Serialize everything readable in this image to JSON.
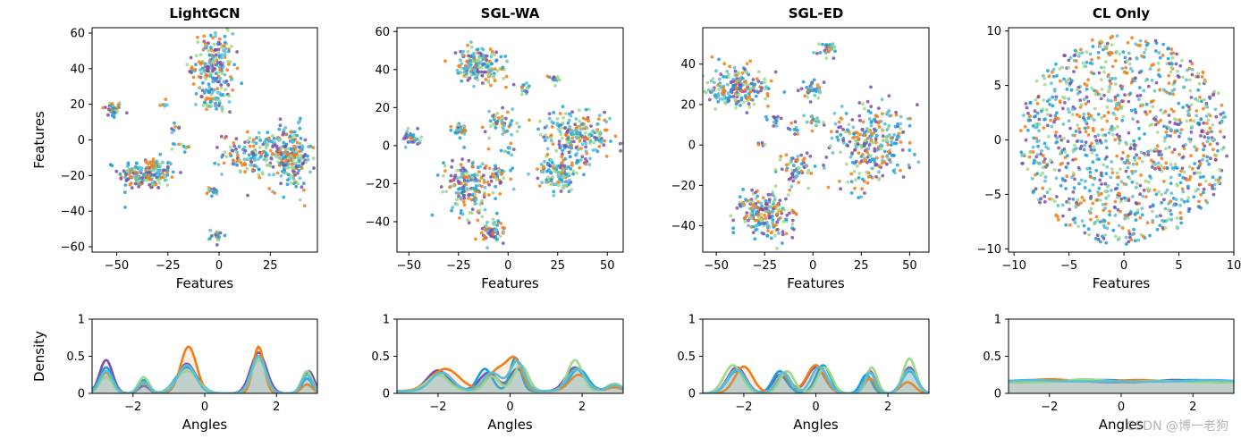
{
  "watermark": "CSDN @博一老狗",
  "colors": [
    "#7b4fa8",
    "#1a9fd9",
    "#f57c14",
    "#9fd889",
    "#5bbcd6"
  ],
  "chart_data": [
    {
      "type": "scatter",
      "title": "LightGCN",
      "xlabel": "Features",
      "ylabel": "Features",
      "xlim": [
        -62,
        48
      ],
      "ylim": [
        -63,
        63
      ],
      "xticks": [
        -50,
        -25,
        0,
        25
      ],
      "yticks": [
        -60,
        -40,
        -20,
        0,
        20,
        40,
        60
      ],
      "clusters": [
        {
          "x": -52,
          "y": 17,
          "sx": 2.5,
          "sy": 2.5,
          "n": 35
        },
        {
          "x": -35,
          "y": -19,
          "sx": 7,
          "sy": 4.5,
          "n": 190
        },
        {
          "x": -27,
          "y": 20,
          "sx": 1.5,
          "sy": 1.2,
          "n": 7
        },
        {
          "x": -22,
          "y": 7,
          "sx": 1.5,
          "sy": 1.5,
          "n": 8
        },
        {
          "x": -18,
          "y": -4,
          "sx": 2,
          "sy": 1.5,
          "n": 10
        },
        {
          "x": -3,
          "y": 42,
          "sx": 5,
          "sy": 9,
          "n": 190
        },
        {
          "x": -2,
          "y": 22,
          "sx": 4,
          "sy": 3,
          "n": 50
        },
        {
          "x": -3,
          "y": -29,
          "sx": 2,
          "sy": 1.5,
          "n": 15
        },
        {
          "x": -1,
          "y": -54,
          "sx": 2,
          "sy": 1.8,
          "n": 20
        },
        {
          "x": 18,
          "y": -8,
          "sx": 8,
          "sy": 6,
          "n": 160
        },
        {
          "x": 35,
          "y": -10,
          "sx": 5,
          "sy": 9,
          "n": 200
        }
      ]
    },
    {
      "type": "scatter",
      "title": "SGL-WA",
      "xlabel": "Features",
      "ylabel": "",
      "xlim": [
        -56,
        58
      ],
      "ylim": [
        -56,
        62
      ],
      "xticks": [
        -50,
        -25,
        0,
        25,
        50
      ],
      "yticks": [
        -40,
        -20,
        0,
        20,
        40,
        60
      ],
      "clusters": [
        {
          "x": -48,
          "y": 4,
          "sx": 2.5,
          "sy": 2.5,
          "n": 30
        },
        {
          "x": -15,
          "y": 42,
          "sx": 6,
          "sy": 5,
          "n": 170
        },
        {
          "x": -25,
          "y": 9,
          "sx": 2.5,
          "sy": 2,
          "n": 30
        },
        {
          "x": -5,
          "y": 12,
          "sx": 4,
          "sy": 3,
          "n": 50
        },
        {
          "x": 8,
          "y": 30,
          "sx": 2,
          "sy": 1.5,
          "n": 15
        },
        {
          "x": 23,
          "y": 35,
          "sx": 1.5,
          "sy": 1.5,
          "n": 12
        },
        {
          "x": -20,
          "y": -22,
          "sx": 6,
          "sy": 8,
          "n": 170
        },
        {
          "x": -8,
          "y": -45,
          "sx": 4,
          "sy": 3,
          "n": 60
        },
        {
          "x": -6,
          "y": -15,
          "sx": 3,
          "sy": 3,
          "n": 35
        },
        {
          "x": 0,
          "y": -2,
          "sx": 1.5,
          "sy": 1.5,
          "n": 10
        },
        {
          "x": 25,
          "y": -15,
          "sx": 5,
          "sy": 4,
          "n": 120
        },
        {
          "x": 35,
          "y": 5,
          "sx": 9,
          "sy": 7,
          "n": 220
        }
      ]
    },
    {
      "type": "scatter",
      "title": "SGL-ED",
      "xlabel": "Features",
      "ylabel": "",
      "xlim": [
        -57,
        60
      ],
      "ylim": [
        -53,
        58
      ],
      "xticks": [
        -50,
        -25,
        0,
        25,
        50
      ],
      "yticks": [
        -40,
        -20,
        0,
        20,
        40
      ],
      "clusters": [
        {
          "x": -40,
          "y": 28,
          "sx": 8,
          "sy": 5,
          "n": 200
        },
        {
          "x": -20,
          "y": 12,
          "sx": 1.5,
          "sy": 1.5,
          "n": 12
        },
        {
          "x": -27,
          "y": 0,
          "sx": 1.2,
          "sy": 1.2,
          "n": 5
        },
        {
          "x": -10,
          "y": 8,
          "sx": 1.5,
          "sy": 1.5,
          "n": 10
        },
        {
          "x": 0,
          "y": 27,
          "sx": 3,
          "sy": 2.5,
          "n": 30
        },
        {
          "x": 2,
          "y": 12,
          "sx": 2.5,
          "sy": 2,
          "n": 20
        },
        {
          "x": 8,
          "y": 47,
          "sx": 3,
          "sy": 3,
          "n": 30
        },
        {
          "x": -25,
          "y": -34,
          "sx": 7,
          "sy": 6,
          "n": 200
        },
        {
          "x": -8,
          "y": -12,
          "sx": 4,
          "sy": 4,
          "n": 60
        },
        {
          "x": 30,
          "y": 0,
          "sx": 10,
          "sy": 10,
          "n": 280
        }
      ]
    },
    {
      "type": "scatter",
      "title": "CL Only",
      "xlabel": "Features",
      "ylabel": "",
      "xlim": [
        -10.5,
        10
      ],
      "ylim": [
        -10.3,
        10.3
      ],
      "xticks": [
        -10,
        -5,
        0,
        5,
        10
      ],
      "yticks": [
        -10,
        -5,
        0,
        5,
        10
      ],
      "disk": {
        "cx": 0,
        "cy": 0,
        "r": 9.6,
        "n": 1100
      }
    },
    {
      "type": "area",
      "title": "",
      "xlabel": "Angles",
      "ylabel": "Density",
      "xlim": [
        -3.14,
        3.14
      ],
      "ylim": [
        0,
        1.0
      ],
      "xticks": [
        -2,
        0,
        2
      ],
      "yticks": [
        0.0,
        0.5,
        1.0
      ],
      "series": [
        {
          "name": "purple",
          "base": 0.0,
          "peaks": [
            [
              -2.75,
              0.45,
              0.18
            ],
            [
              -1.7,
              0.1,
              0.15
            ],
            [
              -0.5,
              0.4,
              0.25
            ],
            [
              1.5,
              0.55,
              0.22
            ],
            [
              2.9,
              0.3,
              0.15
            ]
          ]
        },
        {
          "name": "blue",
          "base": 0.0,
          "peaks": [
            [
              -2.75,
              0.35,
              0.18
            ],
            [
              -1.7,
              0.18,
              0.15
            ],
            [
              -0.5,
              0.35,
              0.3
            ],
            [
              1.5,
              0.5,
              0.2
            ],
            [
              2.85,
              0.2,
              0.15
            ]
          ]
        },
        {
          "name": "orange",
          "base": 0.0,
          "peaks": [
            [
              -2.75,
              0.28,
              0.18
            ],
            [
              -1.7,
              0.14,
              0.15
            ],
            [
              -0.45,
              0.63,
              0.22
            ],
            [
              1.5,
              0.63,
              0.15
            ],
            [
              2.85,
              0.12,
              0.15
            ]
          ]
        },
        {
          "name": "green",
          "base": 0.0,
          "peaks": [
            [
              -2.75,
              0.22,
              0.18
            ],
            [
              -1.7,
              0.22,
              0.15
            ],
            [
              -0.5,
              0.3,
              0.3
            ],
            [
              1.5,
              0.45,
              0.2
            ],
            [
              2.85,
              0.3,
              0.15
            ]
          ]
        },
        {
          "name": "teal",
          "base": 0.0,
          "peaks": [
            [
              -2.75,
              0.3,
              0.18
            ],
            [
              -1.7,
              0.15,
              0.15
            ],
            [
              -0.5,
              0.38,
              0.25
            ],
            [
              1.5,
              0.5,
              0.2
            ],
            [
              2.85,
              0.25,
              0.15
            ]
          ]
        }
      ]
    },
    {
      "type": "area",
      "title": "",
      "xlabel": "Angles",
      "ylabel": "",
      "xlim": [
        -3.14,
        3.14
      ],
      "ylim": [
        0,
        1.0
      ],
      "xticks": [
        -2,
        0,
        2
      ],
      "yticks": [
        0.0,
        0.5,
        1.0
      ],
      "series": [
        {
          "name": "purple",
          "base": 0.03,
          "peaks": [
            [
              -2.0,
              0.28,
              0.3
            ],
            [
              -0.6,
              0.25,
              0.25
            ],
            [
              0.2,
              0.3,
              0.2
            ],
            [
              1.8,
              0.32,
              0.25
            ],
            [
              2.9,
              0.1,
              0.2
            ]
          ]
        },
        {
          "name": "blue",
          "base": 0.03,
          "peaks": [
            [
              -1.9,
              0.25,
              0.3
            ],
            [
              -0.7,
              0.3,
              0.2
            ],
            [
              0.15,
              0.45,
              0.15
            ],
            [
              1.9,
              0.3,
              0.25
            ],
            [
              2.9,
              0.08,
              0.2
            ]
          ]
        },
        {
          "name": "orange",
          "base": 0.03,
          "peaks": [
            [
              -1.8,
              0.3,
              0.4
            ],
            [
              -0.3,
              0.3,
              0.3
            ],
            [
              0.15,
              0.35,
              0.2
            ],
            [
              1.9,
              0.22,
              0.25
            ],
            [
              2.9,
              0.05,
              0.2
            ]
          ]
        },
        {
          "name": "green",
          "base": 0.03,
          "peaks": [
            [
              -2.0,
              0.22,
              0.3
            ],
            [
              -0.5,
              0.2,
              0.2
            ],
            [
              0.3,
              0.35,
              0.2
            ],
            [
              1.8,
              0.42,
              0.2
            ],
            [
              2.9,
              0.1,
              0.2
            ]
          ]
        },
        {
          "name": "teal",
          "base": 0.03,
          "peaks": [
            [
              -1.9,
              0.25,
              0.3
            ],
            [
              -0.5,
              0.25,
              0.25
            ],
            [
              0.2,
              0.4,
              0.2
            ],
            [
              1.85,
              0.3,
              0.25
            ],
            [
              2.9,
              0.08,
              0.2
            ]
          ]
        }
      ]
    },
    {
      "type": "area",
      "title": "",
      "xlabel": "Angles",
      "ylabel": "",
      "xlim": [
        -3.14,
        3.14
      ],
      "ylim": [
        0,
        1.0
      ],
      "xticks": [
        -2,
        0,
        2
      ],
      "yticks": [
        0.0,
        0.5,
        1.0
      ],
      "series": [
        {
          "name": "purple",
          "base": 0.0,
          "peaks": [
            [
              -2.2,
              0.35,
              0.25
            ],
            [
              -1.0,
              0.25,
              0.2
            ],
            [
              0.0,
              0.35,
              0.25
            ],
            [
              1.5,
              0.3,
              0.15
            ],
            [
              2.6,
              0.35,
              0.2
            ]
          ]
        },
        {
          "name": "blue",
          "base": 0.0,
          "peaks": [
            [
              -2.2,
              0.3,
              0.25
            ],
            [
              -1.0,
              0.3,
              0.2
            ],
            [
              0.2,
              0.38,
              0.2
            ],
            [
              1.4,
              0.25,
              0.15
            ],
            [
              2.6,
              0.3,
              0.2
            ]
          ]
        },
        {
          "name": "orange",
          "base": 0.0,
          "peaks": [
            [
              -2.0,
              0.36,
              0.25
            ],
            [
              -0.9,
              0.25,
              0.2
            ],
            [
              0.0,
              0.38,
              0.25
            ],
            [
              1.5,
              0.2,
              0.15
            ],
            [
              2.55,
              0.15,
              0.2
            ]
          ]
        },
        {
          "name": "green",
          "base": 0.0,
          "peaks": [
            [
              -2.3,
              0.38,
              0.25
            ],
            [
              -0.8,
              0.3,
              0.2
            ],
            [
              0.25,
              0.35,
              0.2
            ],
            [
              1.55,
              0.35,
              0.15
            ],
            [
              2.6,
              0.47,
              0.18
            ]
          ]
        },
        {
          "name": "teal",
          "base": 0.0,
          "peaks": [
            [
              -2.2,
              0.32,
              0.25
            ],
            [
              -0.9,
              0.28,
              0.2
            ],
            [
              0.1,
              0.36,
              0.22
            ],
            [
              1.5,
              0.28,
              0.15
            ],
            [
              2.6,
              0.32,
              0.2
            ]
          ]
        }
      ]
    },
    {
      "type": "area",
      "title": "",
      "xlabel": "Angles",
      "ylabel": "",
      "xlim": [
        -3.14,
        3.14
      ],
      "ylim": [
        0,
        1.0
      ],
      "xticks": [
        -2,
        0,
        2
      ],
      "yticks": [
        0.0,
        0.5,
        1.0
      ],
      "series": [
        {
          "name": "purple",
          "base": 0.15,
          "peaks": [
            [
              -1.5,
              0.02,
              0.5
            ],
            [
              1.5,
              0.03,
              0.5
            ]
          ]
        },
        {
          "name": "blue",
          "base": 0.16,
          "peaks": [
            [
              -0.5,
              0.02,
              0.6
            ],
            [
              2.0,
              0.02,
              0.5
            ]
          ]
        },
        {
          "name": "orange",
          "base": 0.16,
          "peaks": [
            [
              -2.0,
              0.03,
              0.5
            ],
            [
              0.5,
              0.02,
              0.5
            ]
          ]
        },
        {
          "name": "green",
          "base": 0.15,
          "peaks": [
            [
              -1.0,
              0.04,
              0.5
            ],
            [
              1.0,
              0.02,
              0.5
            ]
          ]
        },
        {
          "name": "teal",
          "base": 0.16,
          "peaks": [
            [
              -2.5,
              0.02,
              0.5
            ],
            [
              2.5,
              0.02,
              0.5
            ]
          ]
        }
      ]
    }
  ]
}
